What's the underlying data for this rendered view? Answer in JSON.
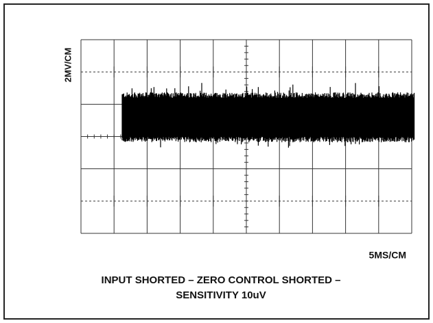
{
  "y_label": "2MV/CM",
  "x_label": "5MS/CM",
  "caption": {
    "line1": "INPUT SHORTED – ZERO CONTROL SHORTED –",
    "line2": "SENSITIVITY 10uV"
  }
}
